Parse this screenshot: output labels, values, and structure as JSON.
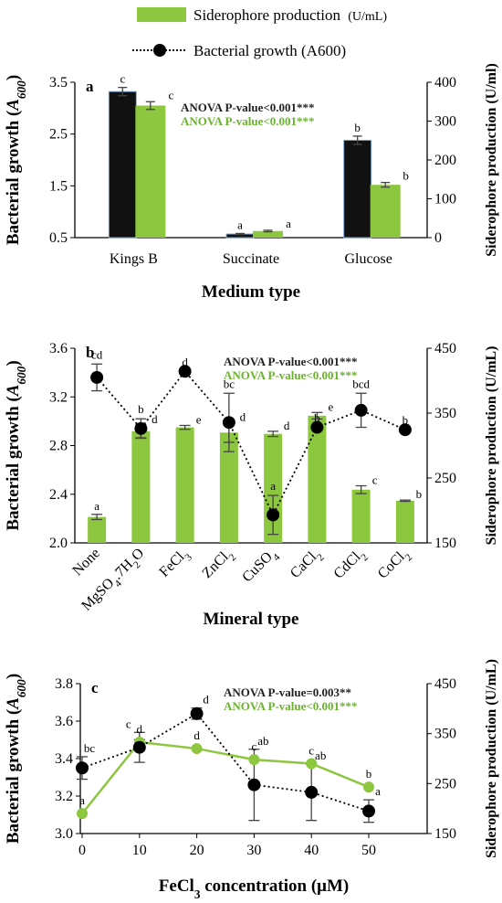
{
  "legend": {
    "bar_label": "Siderophore production",
    "bar_unit": "(U/mL)",
    "line_label": "Bacterial growth (A600)"
  },
  "colors": {
    "bar": "#8dc63f",
    "dark_bar": "#111111",
    "green_text": "#6ab42c"
  },
  "chart_data": [
    {
      "panel": "a",
      "type": "bar",
      "categories": [
        "Kings B",
        "Succinate",
        "Glucose"
      ],
      "xlabel": "Medium type",
      "ylabel_left": "Bacterial growth (A600)",
      "ylabel_right": "Siderophore production (U/ml)",
      "ylim_left": [
        0.5,
        3.5
      ],
      "yticks_left": [
        "0.5",
        "1.5",
        "2.5",
        "3.5"
      ],
      "ylim_right": [
        0,
        400
      ],
      "yticks_right": [
        "0",
        "100",
        "200",
        "300",
        "400"
      ],
      "series": [
        {
          "name": "Bacterial growth (A600)",
          "axis": "left",
          "style": "dark-bar",
          "values": [
            3.32,
            0.57,
            2.38
          ],
          "errors": [
            0.08,
            0.01,
            0.08
          ],
          "letters": [
            "c",
            "a",
            "b"
          ]
        },
        {
          "name": "Siderophore production",
          "axis": "right",
          "style": "bar",
          "values": [
            340,
            17,
            136
          ],
          "errors": [
            10,
            2,
            6
          ],
          "letters": [
            "c",
            "a",
            "b"
          ]
        }
      ],
      "anova": [
        "ANOVA P-value<0.001***",
        "ANOVA P-value<0.001***"
      ]
    },
    {
      "panel": "b",
      "type": "bar+line",
      "categories": [
        "None",
        "MgSO₄.7H₂O",
        "FeCl₃",
        "ZnCl₂",
        "CuSO₄",
        "CaCl₂",
        "CdCl₂",
        "CoCl₂"
      ],
      "xlabel": "Mineral type",
      "ylabel_left": "Bacterial growth (A600)",
      "ylabel_right": "Siderophore production (U/mL)",
      "ylim_left": [
        2.0,
        3.6
      ],
      "yticks_left": [
        "2.0",
        "2.4",
        "2.8",
        "3.2",
        "3.6"
      ],
      "ylim_right": [
        150,
        450
      ],
      "yticks_right": [
        "150",
        "250",
        "350",
        "450"
      ],
      "series": [
        {
          "name": "Siderophore production",
          "axis": "right",
          "style": "bar",
          "values": [
            190,
            322,
            328,
            320,
            318,
            346,
            232,
            215
          ],
          "errors": [
            4,
            10,
            3,
            15,
            4,
            5,
            6,
            1
          ],
          "letters": [
            "a",
            "d",
            "e",
            "d",
            "d",
            "e",
            "c",
            "b"
          ]
        },
        {
          "name": "Bacterial growth (A600)",
          "axis": "left",
          "style": "line",
          "values": [
            3.36,
            2.94,
            3.41,
            2.99,
            2.23,
            2.95,
            3.09,
            2.93
          ],
          "errors": [
            0.11,
            0.08,
            0.0,
            0.24,
            0.16,
            0.0,
            0.14,
            0.0
          ],
          "letters": [
            "cd",
            "b",
            "d",
            "bc",
            "a",
            "b",
            "bcd",
            "b"
          ]
        }
      ],
      "anova": [
        "ANOVA P-value<0.001***",
        "ANOVA P-value<0.001***"
      ]
    },
    {
      "panel": "c",
      "type": "line",
      "x": [
        0,
        10,
        20,
        30,
        40,
        50
      ],
      "xticks": [
        "0",
        "10",
        "20",
        "30",
        "40",
        "50"
      ],
      "xlabel": "FeCl₃ concentration (μM)",
      "ylabel_left": "Bacterial growth (A600)",
      "ylabel_right": "Siderophore production (U/mL)",
      "ylim_left": [
        3.0,
        3.8
      ],
      "yticks_left": [
        "3.0",
        "3.2",
        "3.4",
        "3.6",
        "3.8"
      ],
      "ylim_right": [
        150,
        450
      ],
      "yticks_right": [
        "150",
        "250",
        "350",
        "450"
      ],
      "series": [
        {
          "name": "Bacterial growth (A600)",
          "axis": "left",
          "style": "dotted-line",
          "values": [
            3.35,
            3.46,
            3.64,
            3.26,
            3.22,
            3.12
          ],
          "errors": [
            0.06,
            0.08,
            0.03,
            0.19,
            0.15,
            0.06
          ],
          "letters": [
            "bc",
            "c",
            "d",
            "ab",
            "ab",
            "a"
          ]
        },
        {
          "name": "Siderophore production",
          "axis": "right",
          "style": "green-line",
          "values": [
            190,
            333,
            320,
            298,
            290,
            243
          ],
          "errors": [
            0,
            5,
            0,
            0,
            0,
            0
          ],
          "letters": [
            "a",
            "d",
            "d",
            "c",
            "c",
            "b"
          ]
        }
      ],
      "anova": [
        "ANOVA P-value=0.003**",
        "ANOVA P-value<0.001***"
      ]
    }
  ]
}
